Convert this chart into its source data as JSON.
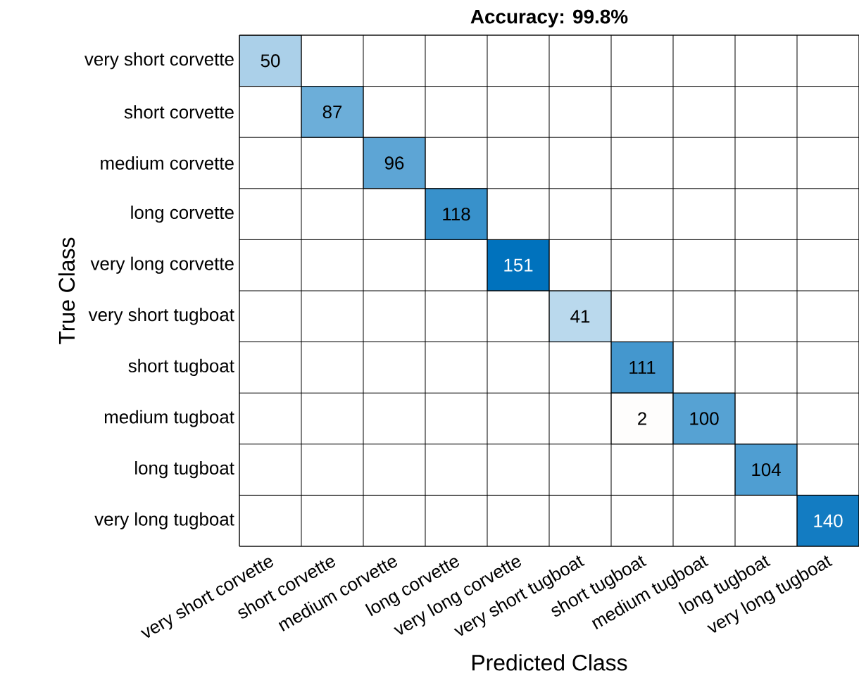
{
  "chart_data": {
    "type": "heatmap",
    "title": "Accuracy: 99.8%",
    "xlabel": "Predicted Class",
    "ylabel": "True Class",
    "categories": [
      "very short corvette",
      "short corvette",
      "medium corvette",
      "long corvette",
      "very long corvette",
      "very short tugboat",
      "short tugboat",
      "medium tugboat",
      "long tugboat",
      "very long tugboat"
    ],
    "y_categories": [
      "very short corvette",
      "short corvette",
      "medium corvette",
      "long corvette",
      "very long corvette",
      "very short tugboat",
      "short tugboat",
      "medium tugboat",
      "long tugboat",
      "very long tugboat"
    ],
    "cells": [
      [
        50,
        null,
        null,
        null,
        null,
        null,
        null,
        null,
        null,
        null
      ],
      [
        null,
        87,
        null,
        null,
        null,
        null,
        null,
        null,
        null,
        null
      ],
      [
        null,
        null,
        96,
        null,
        null,
        null,
        null,
        null,
        null,
        null
      ],
      [
        null,
        null,
        null,
        118,
        null,
        null,
        null,
        null,
        null,
        null
      ],
      [
        null,
        null,
        null,
        null,
        151,
        null,
        null,
        null,
        null,
        null
      ],
      [
        null,
        null,
        null,
        null,
        null,
        41,
        null,
        null,
        null,
        null
      ],
      [
        null,
        null,
        null,
        null,
        null,
        null,
        111,
        null,
        null,
        null
      ],
      [
        null,
        null,
        null,
        null,
        null,
        null,
        2,
        100,
        null,
        null
      ],
      [
        null,
        null,
        null,
        null,
        null,
        null,
        null,
        null,
        104,
        null
      ],
      [
        null,
        null,
        null,
        null,
        null,
        null,
        null,
        null,
        null,
        140
      ]
    ],
    "data_labels": true,
    "grid": true
  }
}
